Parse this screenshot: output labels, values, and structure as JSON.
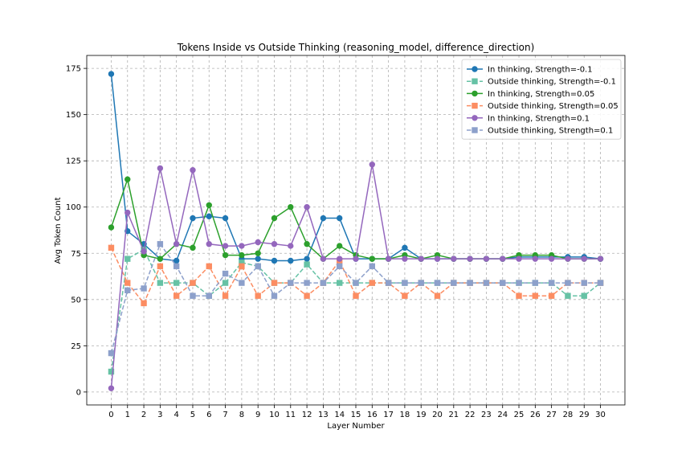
{
  "chart_data": {
    "type": "line",
    "title": "Tokens Inside vs Outside Thinking (reasoning_model, difference_direction)",
    "xlabel": "Layer Number",
    "ylabel": "Avg Token Count",
    "x": [
      0,
      1,
      2,
      3,
      4,
      5,
      6,
      7,
      8,
      9,
      10,
      11,
      12,
      13,
      14,
      15,
      16,
      17,
      18,
      19,
      20,
      21,
      22,
      23,
      24,
      25,
      26,
      27,
      28,
      29,
      30
    ],
    "xlim": [
      -1.5,
      31.5
    ],
    "ylim": [
      -7,
      182
    ],
    "yticks": [
      0,
      25,
      50,
      75,
      100,
      125,
      150,
      175
    ],
    "grid": true,
    "legend_position": "upper right",
    "series": [
      {
        "name": "In thinking, Strength=-0.1",
        "color": "#1f77b4",
        "marker": "circle",
        "linestyle": "solid",
        "values": [
          172,
          87,
          80,
          72,
          71,
          94,
          95,
          94,
          72,
          72,
          71,
          71,
          72,
          94,
          94,
          72,
          72,
          72,
          78,
          72,
          72,
          72,
          72,
          72,
          72,
          73,
          73,
          73,
          73,
          73,
          72
        ]
      },
      {
        "name": "Outside thinking, Strength=-0.1",
        "color": "#66c2a5",
        "marker": "square",
        "linestyle": "dashed",
        "values": [
          11,
          72,
          77,
          59,
          59,
          59,
          52,
          59,
          70,
          68,
          59,
          59,
          69,
          59,
          59,
          59,
          59,
          59,
          59,
          59,
          59,
          59,
          59,
          59,
          59,
          59,
          59,
          59,
          52,
          52,
          59
        ]
      },
      {
        "name": "In thinking, Strength=0.05",
        "color": "#2ca02c",
        "marker": "circle",
        "linestyle": "solid",
        "values": [
          89,
          115,
          74,
          72,
          80,
          78,
          101,
          74,
          74,
          75,
          94,
          100,
          80,
          72,
          79,
          74,
          72,
          72,
          74,
          72,
          74,
          72,
          72,
          72,
          72,
          74,
          74,
          74,
          72,
          72,
          72
        ]
      },
      {
        "name": "Outside thinking, Strength=0.05",
        "color": "#fc8d62",
        "marker": "square",
        "linestyle": "dashed",
        "values": [
          78,
          59,
          48,
          68,
          52,
          59,
          68,
          52,
          68,
          52,
          59,
          59,
          52,
          59,
          71,
          52,
          59,
          59,
          52,
          59,
          52,
          59,
          59,
          59,
          59,
          52,
          52,
          52,
          59,
          59,
          59
        ]
      },
      {
        "name": "In thinking, Strength=0.1",
        "color": "#9467bd",
        "marker": "circle",
        "linestyle": "solid",
        "values": [
          2,
          97,
          76,
          121,
          80,
          120,
          80,
          79,
          79,
          81,
          80,
          79,
          100,
          72,
          72,
          72,
          123,
          72,
          72,
          72,
          72,
          72,
          72,
          72,
          72,
          72,
          72,
          72,
          72,
          72,
          72
        ]
      },
      {
        "name": "Outside thinking, Strength=0.1",
        "color": "#8da0cb",
        "marker": "square",
        "linestyle": "dashed",
        "values": [
          21,
          55,
          56,
          80,
          68,
          52,
          52,
          64,
          59,
          68,
          52,
          59,
          59,
          59,
          68,
          59,
          68,
          59,
          59,
          59,
          59,
          59,
          59,
          59,
          59,
          59,
          59,
          59,
          59,
          59,
          59
        ]
      }
    ]
  }
}
